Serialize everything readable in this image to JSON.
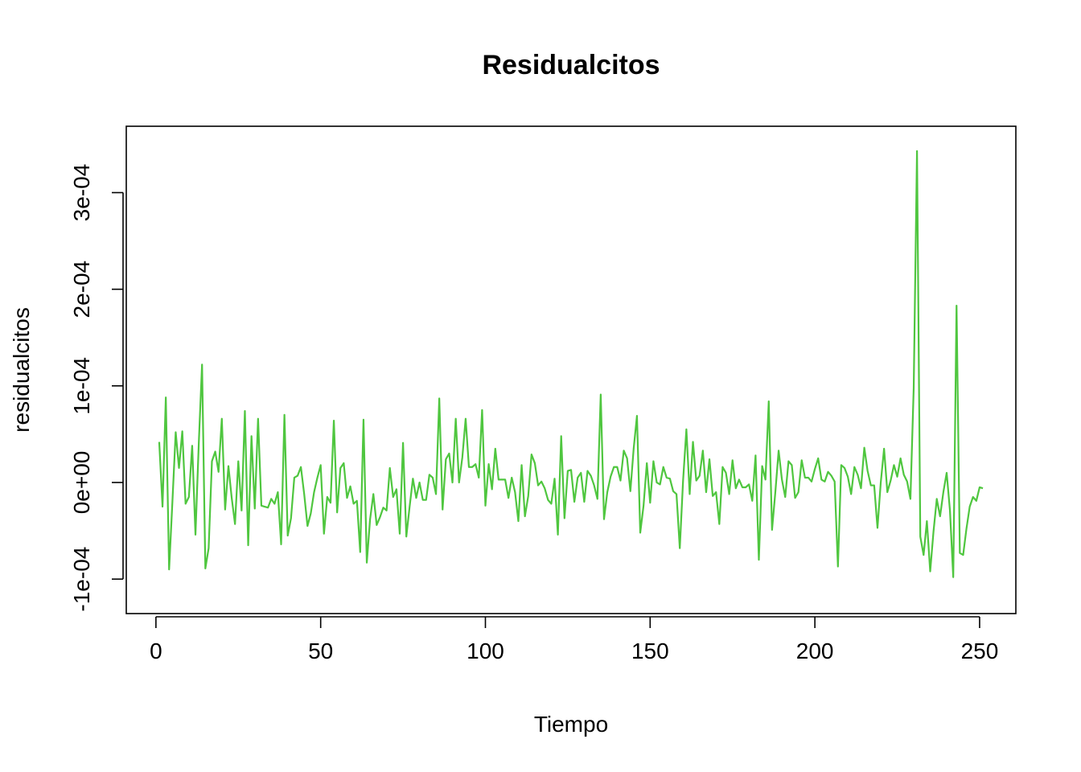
{
  "chart_data": {
    "type": "line",
    "title": "Residualcitos",
    "xlabel": "Tiempo",
    "ylabel": "residualcitos",
    "xlim": [
      1,
      251
    ],
    "ylim": [
      -0.000117,
      0.00035
    ],
    "x_ticks": [
      0,
      50,
      100,
      150,
      200,
      250
    ],
    "x_tick_labels": [
      "0",
      "50",
      "100",
      "150",
      "200",
      "250"
    ],
    "y_ticks": [
      -0.0001,
      0,
      0.0001,
      0.0002,
      0.0003
    ],
    "y_tick_labels": [
      "-1e-04",
      "0e+00",
      "1e-04",
      "2e-04",
      "3e-04"
    ],
    "grid": false,
    "legend": "none",
    "colors": {
      "series": "#4fc63f",
      "axes": "#000000",
      "background": "#ffffff"
    },
    "series": [
      {
        "values": [
          4.2e-05,
          -2.5e-05,
          8.8e-05,
          -9e-05,
          -2e-05,
          5.2e-05,
          1.5e-05,
          5.3e-05,
          -2.2e-05,
          -1.5e-05,
          3.8e-05,
          -5.4e-05,
          4e-05,
          0.000122,
          -8.9e-05,
          -6.8e-05,
          2.2e-05,
          3.2e-05,
          1.1e-05,
          6.6e-05,
          -2.8e-05,
          1.7e-05,
          -1.6e-05,
          -4.3e-05,
          2.2e-05,
          -2.9e-05,
          7.4e-05,
          -6.5e-05,
          4.8e-05,
          -2.7e-05,
          6.6e-05,
          -2.4e-05,
          -2.5e-05,
          -2.6e-05,
          -1.7e-05,
          -2.2e-05,
          -1e-05,
          -6.4e-05,
          7e-05,
          -5.5e-05,
          -3.7e-05,
          5e-06,
          7e-06,
          1.6e-05,
          -1.2e-05,
          -4.5e-05,
          -3.2e-05,
          -1e-05,
          5e-06,
          1.8e-05,
          -5.3e-05,
          -1.5e-05,
          -2.1e-05,
          6.4e-05,
          -3.1e-05,
          1.5e-05,
          2e-05,
          -1.6e-05,
          -4e-06,
          -2.2e-05,
          -1.9e-05,
          -7.2e-05,
          6.5e-05,
          -8.3e-05,
          -3.8e-05,
          -1.2e-05,
          -4.4e-05,
          -3.6e-05,
          -2.6e-05,
          -2.9e-05,
          1.5e-05,
          -1.5e-05,
          -7e-06,
          -5.3e-05,
          4.1e-05,
          -5.6e-05,
          -2.5e-05,
          4e-06,
          -1.6e-05,
          0.0,
          -1.8e-05,
          -1.8e-05,
          8e-06,
          5e-06,
          -1.2e-05,
          8.7e-05,
          -2.8e-05,
          2.4e-05,
          3e-05,
          0.0,
          6.6e-05,
          0.0,
          2.6e-05,
          6.6e-05,
          1.6e-05,
          1.6e-05,
          1.9e-05,
          5e-06,
          7.5e-05,
          -2.4e-05,
          1.9e-05,
          -7e-06,
          3.5e-05,
          3e-06,
          3e-06,
          3e-06,
          -1.6e-05,
          5e-06,
          -1e-05,
          -4e-05,
          1.8e-05,
          -3.5e-05,
          -1.4e-05,
          2.9e-05,
          2e-05,
          -3e-06,
          1e-06,
          -6e-06,
          -1.8e-05,
          -2.2e-05,
          4e-06,
          -5.4e-05,
          4.8e-05,
          -3.7e-05,
          1.2e-05,
          1.3e-05,
          -2e-05,
          5e-06,
          1e-05,
          -2e-05,
          1.2e-05,
          7e-06,
          -3e-06,
          -1.7e-05,
          9.1e-05,
          -3.8e-05,
          -1e-05,
          6e-06,
          1.6e-05,
          1.6e-05,
          2e-06,
          3.3e-05,
          2.5e-05,
          -9e-06,
          3.5e-05,
          6.9e-05,
          -5.2e-05,
          -2.4e-05,
          2e-05,
          -2.1e-05,
          2.2e-05,
          0.0,
          -2e-06,
          1.6e-05,
          5e-06,
          4e-06,
          -9e-06,
          -1.2e-05,
          -6.8e-05,
          2e-06,
          5.5e-05,
          -1.2e-05,
          4.2e-05,
          2e-06,
          7e-06,
          3.3e-05,
          -1e-05,
          2.4e-05,
          -1.4e-05,
          -1e-05,
          -4.3e-05,
          1.6e-05,
          1e-05,
          -1.2e-05,
          2.3e-05,
          -6e-06,
          3e-06,
          -5e-06,
          -5e-06,
          -2e-06,
          -1.9e-05,
          2.8e-05,
          -8e-05,
          1.7e-05,
          3e-06,
          8.4e-05,
          -4.9e-05,
          -1e-05,
          3.3e-05,
          3e-06,
          -1.5e-05,
          2.2e-05,
          1.8e-05,
          -1.6e-05,
          -1e-05,
          2.3e-05,
          5e-06,
          5e-06,
          1e-06,
          1.4e-05,
          2.5e-05,
          3e-06,
          1e-06,
          1.1e-05,
          7e-06,
          1e-06,
          -8.7e-05,
          1.8e-05,
          1.5e-05,
          6e-06,
          -1.2e-05,
          1.6e-05,
          8e-06,
          -6e-06,
          3.6e-05,
          1.2e-05,
          -3e-06,
          -3e-06,
          -4.7e-05,
          0.0,
          3.5e-05,
          -1e-05,
          2e-06,
          1.8e-05,
          6e-06,
          2.5e-05,
          8e-06,
          1e-06,
          -1.7e-05,
          9.8e-05,
          0.000343,
          -5.6e-05,
          -7.5e-05,
          -4e-05,
          -9.2e-05,
          -5.1e-05,
          -1.7e-05,
          -3.5e-05,
          -1e-05,
          1e-05,
          -2.9e-05,
          -9.8e-05,
          0.000183,
          -7.3e-05,
          -7.5e-05,
          -4.8e-05,
          -2.5e-05,
          -1.5e-05,
          -1.9e-05,
          -5e-06,
          -6e-06
        ]
      }
    ]
  }
}
